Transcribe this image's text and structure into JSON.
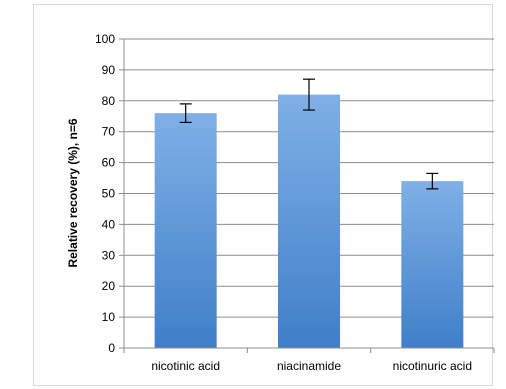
{
  "chart_data": {
    "type": "bar",
    "title": "",
    "xlabel": "",
    "ylabel": "Relative recovery (%), n=6",
    "categories": [
      "nicotinic acid",
      "niacinamide",
      "nicotinuric acid"
    ],
    "values": [
      76,
      82,
      54
    ],
    "error": [
      3,
      5,
      2.5
    ],
    "ylim": [
      0,
      100
    ],
    "yticks": [
      0,
      10,
      20,
      30,
      40,
      50,
      60,
      70,
      80,
      90,
      100
    ],
    "grid": true,
    "legend": "none",
    "colors": {
      "bar_top": "#7fb0e6",
      "bar_bottom": "#3f7fc8",
      "grid": "#8c8c8c",
      "error": "#000000"
    }
  }
}
